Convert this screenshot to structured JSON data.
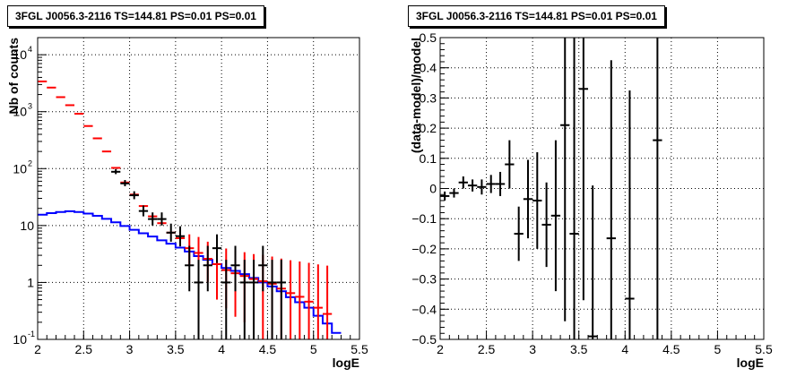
{
  "panels": [
    {
      "title": "3FGL J0056.3-2116 TS=144.81 PS=0.01 PS=0.01",
      "chart_data": {
        "type": "line",
        "xlabel": "logE",
        "ylabel": "Nb of counts",
        "xlim": [
          2,
          5.5
        ],
        "ylim": [
          0.1,
          20000
        ],
        "yscale": "log",
        "grid": true,
        "x_ticks": [
          "2",
          "2.5",
          "3",
          "3.5",
          "4",
          "4.5",
          "5",
          "5.5"
        ],
        "y_ticks": [
          {
            "v": 0.1,
            "label": "10",
            "exp": "-1"
          },
          {
            "v": 1,
            "label": "1",
            "exp": ""
          },
          {
            "v": 10,
            "label": "10",
            "exp": ""
          },
          {
            "v": 100,
            "label": "10",
            "exp": "2"
          },
          {
            "v": 1000,
            "label": "10",
            "exp": "3"
          },
          {
            "v": 10000,
            "label": "10",
            "exp": "4"
          }
        ],
        "series": [
          {
            "style": "step",
            "color": "#0000ff",
            "bin_width": 0.1,
            "x": [
              2.05,
              2.15,
              2.25,
              2.35,
              2.45,
              2.55,
              2.65,
              2.75,
              2.85,
              2.95,
              3.05,
              3.15,
              3.25,
              3.35,
              3.45,
              3.55,
              3.65,
              3.75,
              3.85,
              3.95,
              4.05,
              4.15,
              4.25,
              4.35,
              4.45,
              4.55,
              4.65,
              4.75,
              4.85,
              4.95,
              5.05,
              5.15,
              5.25
            ],
            "y": [
              15.5,
              16.5,
              17.3,
              17.8,
              17.3,
              16.2,
              14.8,
              13.1,
              11.4,
              9.8,
              8.4,
              7.3,
              6.4,
              5.5,
              4.8,
              4.1,
              3.5,
              2.9,
              2.5,
              2.1,
              1.8,
              1.6,
              1.4,
              1.2,
              1.0,
              0.85,
              0.7,
              0.55,
              0.45,
              0.36,
              0.26,
              0.19,
              0.13
            ]
          },
          {
            "style": "errorbar",
            "color": "#ff0000",
            "bin_width": 0.1,
            "x": [
              2.05,
              2.15,
              2.25,
              2.35,
              2.45,
              2.55,
              2.65,
              2.75,
              2.85,
              2.95,
              3.05,
              3.15,
              3.25,
              3.35,
              3.45,
              3.55,
              3.65,
              3.75,
              3.85,
              3.95,
              4.05,
              4.15,
              4.25,
              4.35,
              4.45,
              4.55,
              4.65,
              4.75,
              4.85,
              4.95,
              5.05,
              5.15
            ],
            "y": [
              3400,
              2650,
              1800,
              1300,
              920,
              560,
              340,
              200,
              103,
              57,
              35,
              22,
              14.5,
              11,
              7.5,
              6.0,
              4.0,
              3.3,
              2.6,
              2.1,
              1.65,
              1.45,
              1.3,
              1.15,
              1.05,
              0.95,
              0.78,
              0.65,
              0.56,
              0.46,
              0.36,
              0.28
            ],
            "err_lo": [
              0,
              0,
              0,
              0,
              0,
              0,
              0,
              0,
              0,
              0,
              0,
              0,
              0,
              0,
              0,
              0,
              2.0,
              1.8,
              1.6,
              1.6,
              1.3,
              1.2,
              1.1,
              1.0,
              0.95,
              0.9,
              0.75,
              0.62,
              0.53,
              0.44,
              0.34,
              0.26
            ],
            "err_hi": [
              0,
              0,
              0,
              0,
              0,
              0,
              0,
              0,
              0,
              0,
              0,
              0,
              0,
              0,
              0,
              0,
              3.0,
              3.0,
              2.6,
              2.4,
              2.3,
              2.2,
              2.1,
              2.0,
              2.0,
              1.9,
              1.85,
              1.8,
              1.78,
              1.75,
              1.72,
              1.7
            ]
          },
          {
            "style": "errorbar",
            "color": "#000000",
            "bin_width": 0.1,
            "x": [
              2.85,
              2.95,
              3.05,
              3.15,
              3.25,
              3.35,
              3.45,
              3.55,
              3.65,
              3.75,
              3.85,
              3.95,
              4.05,
              4.15,
              4.25,
              4.35,
              4.45,
              4.55,
              4.65
            ],
            "y": [
              88,
              55,
              34,
              18,
              13,
              13,
              7.5,
              6.5,
              2.0,
              1.0,
              2.0,
              4.0,
              1.0,
              2.0,
              1.0,
              1.0,
              2.0,
              1.0,
              1.0
            ],
            "err_lo": [
              8,
              6,
              5,
              3.5,
              3,
              3,
              2.3,
              2.2,
              1.3,
              0.9,
              1.3,
              1.8,
              0.9,
              1.3,
              0.9,
              0.9,
              1.3,
              0.9,
              0.9
            ],
            "err_hi": [
              10,
              8,
              6,
              4.5,
              4,
              4,
              3.3,
              3.2,
              2.4,
              1.5,
              2.4,
              3.0,
              1.5,
              2.4,
              1.5,
              1.5,
              2.4,
              1.5,
              1.5
            ]
          }
        ]
      }
    },
    {
      "title": "3FGL J0056.3-2116 TS=144.81 PS=0.01 PS=0.01",
      "chart_data": {
        "type": "scatter",
        "xlabel": "logE",
        "ylabel": "(data-model)/model",
        "xlim": [
          2,
          5.5
        ],
        "ylim": [
          -0.5,
          0.5
        ],
        "grid": true,
        "x_ticks": [
          "2",
          "2.5",
          "3",
          "3.5",
          "4",
          "4.5",
          "5",
          "5.5"
        ],
        "y_ticks": [
          "-0.5",
          "-0.4",
          "-0.3",
          "-0.2",
          "-0.1",
          "0",
          "0.1",
          "0.2",
          "0.3",
          "0.4",
          "0.5"
        ],
        "series": [
          {
            "style": "errorbar",
            "color": "#000000",
            "bin_width": 0.1,
            "x": [
              2.05,
              2.15,
              2.25,
              2.35,
              2.45,
              2.55,
              2.65,
              2.75,
              2.85,
              2.95,
              3.05,
              3.15,
              3.25,
              3.35,
              3.45,
              3.55,
              3.65,
              3.85,
              4.05,
              4.35
            ],
            "y": [
              -0.025,
              -0.015,
              0.02,
              0.01,
              0.005,
              0.015,
              0.015,
              0.08,
              -0.15,
              -0.035,
              -0.04,
              -0.12,
              -0.09,
              0.21,
              -0.15,
              0.33,
              -0.49,
              -0.165,
              -0.365,
              0.16
            ],
            "err": [
              0.015,
              0.015,
              0.02,
              0.02,
              0.025,
              0.03,
              0.04,
              0.08,
              0.09,
              0.13,
              0.16,
              0.14,
              0.25,
              0.65,
              0.7,
              0.7,
              0.5,
              0.59,
              0.69,
              0.84
            ]
          }
        ]
      }
    }
  ]
}
